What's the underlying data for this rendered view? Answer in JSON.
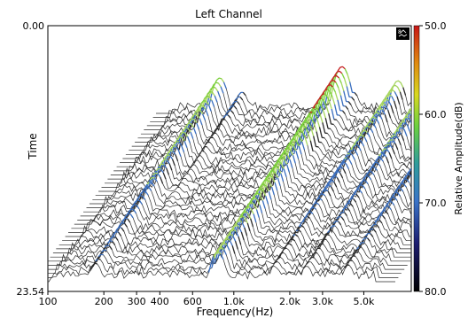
{
  "chart_data": {
    "type": "waterfall",
    "title": "Left Channel",
    "xlabel": "Frequency(Hz)",
    "ylabel": "Time",
    "zlabel": "Relative Amplitude(dB)",
    "x_scale": "log",
    "x_ticks": [
      "100",
      "200",
      "300",
      "400",
      "600",
      "1.0k",
      "2.0k",
      "3.0k",
      "5.0k"
    ],
    "x_tick_values": [
      100,
      200,
      300,
      400,
      600,
      1000,
      2000,
      3000,
      5000
    ],
    "xlim": [
      100,
      9000
    ],
    "y_ticks": [
      "0.00",
      "23.54"
    ],
    "ylim": [
      0,
      23.54
    ],
    "colorbar": {
      "ticks": [
        "50.0",
        "60.0",
        "70.0",
        "80.0"
      ],
      "values": [
        50,
        60,
        70,
        80
      ],
      "range": [
        50,
        80
      ],
      "colors": [
        "#cc1010",
        "#d8d820",
        "#6ad040",
        "#3a78c8",
        "#1a1a66",
        "#000000"
      ]
    },
    "ridges": [
      {
        "freq": 220,
        "peak_db": 60
      },
      {
        "freq": 290,
        "peak_db": 70
      },
      {
        "freq": 1000,
        "peak_db": 52
      },
      {
        "freq": 1150,
        "peak_db": 70
      },
      {
        "freq": 2000,
        "peak_db": 62
      },
      {
        "freq": 3000,
        "peak_db": 62
      },
      {
        "freq": 5000,
        "peak_db": 61
      }
    ],
    "grid": false,
    "legend": "none",
    "colors": {
      "noise": "#2a2a2a",
      "hot": "#c81e1e",
      "warm": "#7ed43c",
      "cool": "#3a6fc0"
    }
  },
  "toolbar": {
    "mode_icon": "surface-mode-icon"
  }
}
